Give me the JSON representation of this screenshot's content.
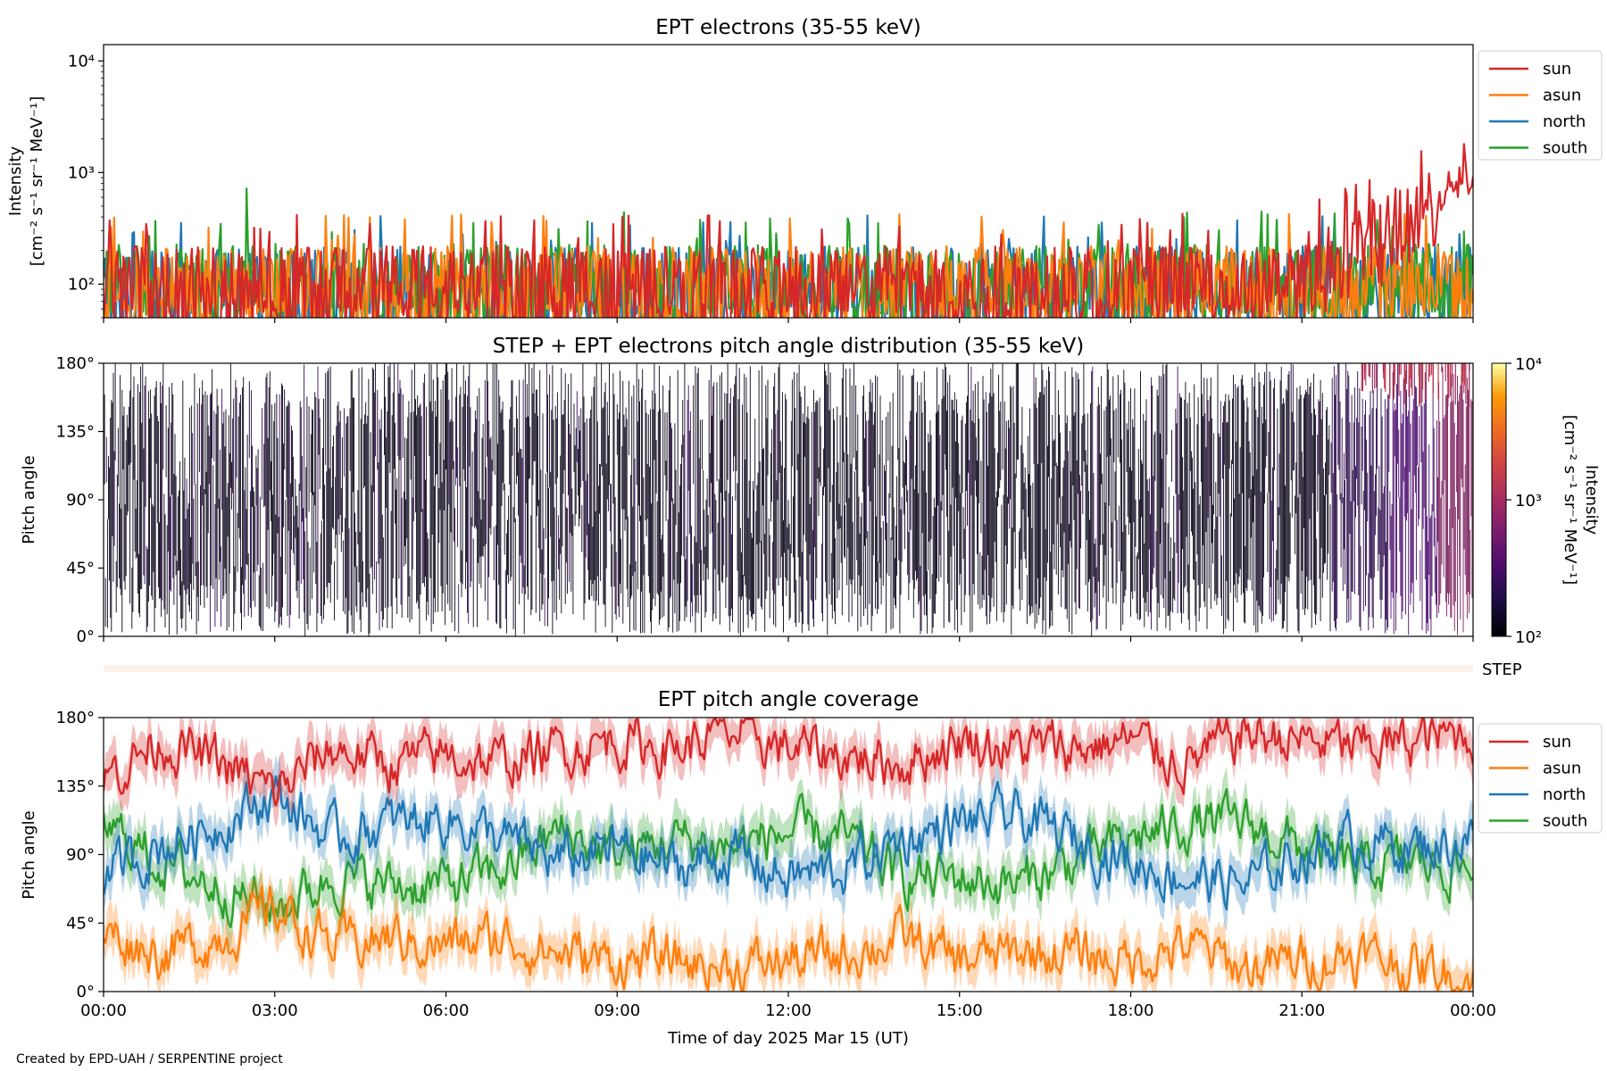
{
  "footer": {
    "credit": "Created by EPD-UAH / SERPENTINE project"
  },
  "colors": {
    "sun": "#d62728",
    "asun": "#ff7f0e",
    "north": "#1f77b4",
    "south": "#2ca02c",
    "step_strip": "#fdf1ea"
  },
  "x_axis": {
    "label": "Time of day 2025 Mar 15 (UT)",
    "range_hours": [
      0,
      24
    ],
    "tick_hours": [
      0,
      3,
      6,
      9,
      12,
      15,
      18,
      21,
      24
    ],
    "tick_labels": [
      "00:00",
      "03:00",
      "06:00",
      "09:00",
      "12:00",
      "15:00",
      "18:00",
      "21:00",
      "00:00"
    ]
  },
  "step_label": "STEP",
  "chart_data": [
    {
      "type": "line",
      "title": "EPT electrons (35-55 keV)",
      "ylabel": "Intensity",
      "yunit": "[cm⁻² s⁻¹ sr⁻¹ MeV⁻¹]",
      "yscale": "log",
      "ylim": [
        50,
        14000
      ],
      "y_ticks": [
        100,
        1000,
        10000
      ],
      "y_tick_labels": [
        "10²",
        "10³",
        "10⁴"
      ],
      "legend": "outside-right",
      "series": [
        {
          "name": "sun",
          "base": 95,
          "peak": 1800,
          "note_end_rise_hour": 20.5
        },
        {
          "name": "asun",
          "base": 95,
          "peak": 420
        },
        {
          "name": "north",
          "base": 95,
          "peak": 380
        },
        {
          "name": "south",
          "base": 100,
          "peak": 720
        }
      ]
    },
    {
      "type": "heatmap",
      "title": "STEP + EPT electrons pitch angle distribution (35-55 keV)",
      "ylabel": "Pitch angle",
      "ylim": [
        0,
        180
      ],
      "y_ticks": [
        0,
        45,
        90,
        135,
        180
      ],
      "y_tick_labels": [
        "0°",
        "45°",
        "90°",
        "135°",
        "180°"
      ],
      "colorbar": {
        "label": "Intensity",
        "unit": "[cm⁻² s⁻¹ sr⁻¹ MeV⁻¹]",
        "scale": "log",
        "range": [
          100,
          10000
        ],
        "tick_labels": [
          "10²",
          "10³",
          "10⁴"
        ]
      }
    },
    {
      "type": "line",
      "title": "EPT pitch angle coverage",
      "ylabel": "Pitch angle",
      "ylim": [
        0,
        180
      ],
      "y_ticks": [
        0,
        45,
        90,
        135,
        180
      ],
      "y_tick_labels": [
        "0°",
        "45°",
        "90°",
        "135°",
        "180°"
      ],
      "legend": "outside-right",
      "series": [
        {
          "name": "sun",
          "keypoints": [
            [
              0,
              140
            ],
            [
              1,
              165
            ],
            [
              2,
              150
            ],
            [
              3,
              130
            ],
            [
              4,
              160
            ],
            [
              5,
              150
            ],
            [
              6,
              155
            ],
            [
              7,
              150
            ],
            [
              8,
              160
            ],
            [
              9,
              165
            ],
            [
              10,
              160
            ],
            [
              11,
              170
            ],
            [
              12,
              160
            ],
            [
              13,
              155
            ],
            [
              14,
              150
            ],
            [
              15,
              165
            ],
            [
              16,
              160
            ],
            [
              17,
              160
            ],
            [
              18,
              165
            ],
            [
              19,
              150
            ],
            [
              20,
              170
            ],
            [
              21,
              165
            ],
            [
              22,
              160
            ],
            [
              23,
              165
            ],
            [
              24,
              170
            ]
          ]
        },
        {
          "name": "asun",
          "keypoints": [
            [
              0,
              40
            ],
            [
              1,
              25
            ],
            [
              2,
              35
            ],
            [
              3,
              55
            ],
            [
              4,
              30
            ],
            [
              5,
              35
            ],
            [
              6,
              30
            ],
            [
              7,
              35
            ],
            [
              8,
              25
            ],
            [
              9,
              20
            ],
            [
              10,
              20
            ],
            [
              11,
              15
            ],
            [
              12,
              20
            ],
            [
              13,
              25
            ],
            [
              14,
              35
            ],
            [
              15,
              20
            ],
            [
              16,
              25
            ],
            [
              17,
              25
            ],
            [
              18,
              20
            ],
            [
              19,
              30
            ],
            [
              20,
              15
            ],
            [
              21,
              20
            ],
            [
              22,
              25
            ],
            [
              23,
              15
            ],
            [
              24,
              10
            ]
          ]
        },
        {
          "name": "north",
          "keypoints": [
            [
              0,
              75
            ],
            [
              1,
              95
            ],
            [
              2,
              110
            ],
            [
              3,
              130
            ],
            [
              4,
              100
            ],
            [
              5,
              110
            ],
            [
              6,
              115
            ],
            [
              7,
              100
            ],
            [
              8,
              85
            ],
            [
              9,
              95
            ],
            [
              10,
              80
            ],
            [
              11,
              90
            ],
            [
              12,
              75
            ],
            [
              13,
              80
            ],
            [
              14,
              100
            ],
            [
              15,
              110
            ],
            [
              16,
              115
            ],
            [
              17,
              100
            ],
            [
              18,
              85
            ],
            [
              19,
              75
            ],
            [
              20,
              70
            ],
            [
              21,
              90
            ],
            [
              22,
              100
            ],
            [
              23,
              95
            ],
            [
              24,
              100
            ]
          ]
        },
        {
          "name": "south",
          "keypoints": [
            [
              0,
              110
            ],
            [
              1,
              85
            ],
            [
              2,
              70
            ],
            [
              3,
              55
            ],
            [
              4,
              75
            ],
            [
              5,
              70
            ],
            [
              6,
              70
            ],
            [
              7,
              80
            ],
            [
              8,
              105
            ],
            [
              9,
              90
            ],
            [
              10,
              100
            ],
            [
              11,
              95
            ],
            [
              12,
              105
            ],
            [
              13,
              100
            ],
            [
              14,
              75
            ],
            [
              15,
              75
            ],
            [
              16,
              70
            ],
            [
              17,
              85
            ],
            [
              18,
              100
            ],
            [
              19,
              110
            ],
            [
              20,
              110
            ],
            [
              21,
              95
            ],
            [
              22,
              80
            ],
            [
              23,
              85
            ],
            [
              24,
              80
            ]
          ]
        }
      ]
    }
  ]
}
